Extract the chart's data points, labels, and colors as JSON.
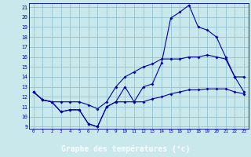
{
  "xlabel": "Graphe des températures (°c)",
  "bg_color": "#c8e8ec",
  "line_color": "#0000aa",
  "grid_color": "#88bbcc",
  "label_bg_color": "#2222aa",
  "label_text_color": "#ffffff",
  "xlim": [
    -0.5,
    23.5
  ],
  "ylim": [
    8.8,
    21.4
  ],
  "yticks": [
    9,
    10,
    11,
    12,
    13,
    14,
    15,
    16,
    17,
    18,
    19,
    20,
    21
  ],
  "xticks": [
    0,
    1,
    2,
    3,
    4,
    5,
    6,
    7,
    8,
    9,
    10,
    11,
    12,
    13,
    14,
    15,
    16,
    17,
    18,
    19,
    20,
    21,
    22,
    23
  ],
  "line1_x": [
    0,
    1,
    2,
    3,
    4,
    5,
    6,
    7,
    8,
    9,
    10,
    11,
    12,
    13,
    14,
    15,
    16,
    17,
    18,
    19,
    20,
    21,
    22,
    23
  ],
  "line1_y": [
    12.5,
    11.7,
    11.5,
    10.5,
    10.7,
    10.7,
    9.3,
    9.0,
    11.0,
    11.5,
    13.0,
    11.5,
    13.0,
    13.3,
    15.4,
    19.9,
    20.5,
    21.2,
    19.0,
    18.7,
    18.0,
    16.0,
    14.0,
    14.0
  ],
  "line2_x": [
    0,
    1,
    2,
    3,
    4,
    5,
    6,
    7,
    8,
    9,
    10,
    11,
    12,
    13,
    14,
    15,
    16,
    17,
    18,
    19,
    20,
    21,
    22,
    23
  ],
  "line2_y": [
    12.5,
    11.7,
    11.5,
    11.5,
    11.5,
    11.5,
    11.2,
    10.8,
    11.5,
    13.0,
    14.0,
    14.5,
    15.0,
    15.3,
    15.8,
    15.8,
    15.8,
    16.0,
    16.0,
    16.2,
    16.0,
    15.8,
    14.0,
    12.5
  ],
  "line3_x": [
    0,
    1,
    2,
    3,
    4,
    5,
    6,
    7,
    8,
    9,
    10,
    11,
    12,
    13,
    14,
    15,
    16,
    17,
    18,
    19,
    20,
    21,
    22,
    23
  ],
  "line3_y": [
    12.5,
    11.7,
    11.5,
    10.5,
    10.7,
    10.7,
    9.3,
    9.0,
    11.0,
    11.5,
    11.5,
    11.5,
    11.5,
    11.8,
    12.0,
    12.3,
    12.5,
    12.7,
    12.7,
    12.8,
    12.8,
    12.8,
    12.5,
    12.3
  ],
  "marker_size": 2.0,
  "linewidth": 0.8
}
